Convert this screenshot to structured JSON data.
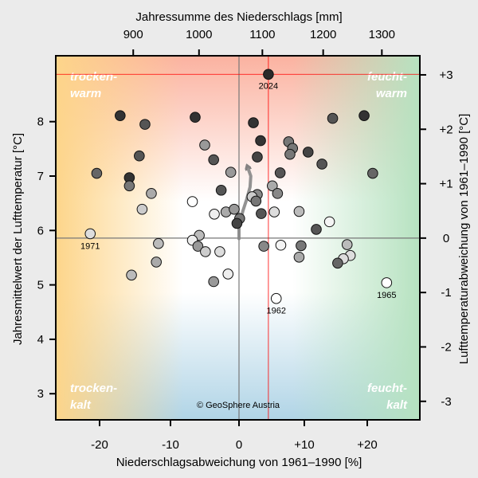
{
  "chart_data": {
    "type": "scatter",
    "title": "",
    "xlabel": "Niederschlagsabweichung von 1961–1990 [%]",
    "ylabel": "Jahresmittelwert der Lufttemperatur [°C]",
    "x2label": "Jahressumme des Niederschlags [mm]",
    "y2label": "Lufttemperaturabweichung von 1961–1990 [°C]",
    "xlim": [
      -26,
      28
    ],
    "ylim": [
      2.5,
      9.2
    ],
    "x_ticks": [
      {
        "v": -20,
        "label": "-20"
      },
      {
        "v": -10,
        "label": "-10"
      },
      {
        "v": 0,
        "label": "0"
      },
      {
        "v": 10,
        "label": "+10"
      },
      {
        "v": 20,
        "label": "+20"
      }
    ],
    "y_ticks": [
      {
        "v": 3,
        "label": "3"
      },
      {
        "v": 4,
        "label": "4"
      },
      {
        "v": 5,
        "label": "5"
      },
      {
        "v": 6,
        "label": "6"
      },
      {
        "v": 7,
        "label": "7"
      },
      {
        "v": 8,
        "label": "8"
      }
    ],
    "x2_ticks": [
      {
        "v": 900,
        "label": "900"
      },
      {
        "v": 1000,
        "label": "1000"
      },
      {
        "v": 1100,
        "label": "1100"
      },
      {
        "v": 1200,
        "label": "1200"
      },
      {
        "v": 1300,
        "label": "1300"
      }
    ],
    "y2_ticks": [
      {
        "v": 3,
        "label": "+3"
      },
      {
        "v": 2,
        "label": "+2"
      },
      {
        "v": 1,
        "label": "+1"
      },
      {
        "v": 0,
        "label": "0"
      },
      {
        "v": -1,
        "label": "-1"
      },
      {
        "v": -2,
        "label": "-2"
      },
      {
        "v": -3,
        "label": "-3"
      }
    ],
    "baseline_temp": 5.86,
    "baseline_precip_mm": 1062,
    "quadrants": {
      "top_left": [
        "trocken-",
        "warm"
      ],
      "top_right": [
        "feucht-",
        "warm"
      ],
      "bottom_left": [
        "trocken-",
        "kalt"
      ],
      "bottom_right": [
        "feucht-",
        "kalt"
      ]
    },
    "highlight": {
      "year": "2024",
      "x": 4.5,
      "y": 8.87,
      "color": "#ff0000"
    },
    "labeled_points": [
      {
        "year": "1971",
        "x": -23.3,
        "y": 5.94
      },
      {
        "year": "1962",
        "x": 5.7,
        "y": 4.75
      },
      {
        "year": "1965",
        "x": 23.2,
        "y": 5.04
      }
    ],
    "points": [
      {
        "x": 4.5,
        "y": 8.87,
        "fill": "#2a2a2a"
      },
      {
        "x": -17.1,
        "y": 8.11,
        "fill": "#333333"
      },
      {
        "x": -13.6,
        "y": 7.95,
        "fill": "#555555"
      },
      {
        "x": -6.4,
        "y": 8.08,
        "fill": "#333333"
      },
      {
        "x": 2.2,
        "y": 7.98,
        "fill": "#333333"
      },
      {
        "x": 14.5,
        "y": 8.06,
        "fill": "#555555"
      },
      {
        "x": 19.5,
        "y": 8.11,
        "fill": "#333333"
      },
      {
        "x": 3.3,
        "y": 7.65,
        "fill": "#333333"
      },
      {
        "x": -5.0,
        "y": 7.57,
        "fill": "#999999"
      },
      {
        "x": 7.6,
        "y": 7.63,
        "fill": "#777777"
      },
      {
        "x": 8.2,
        "y": 7.51,
        "fill": "#777777"
      },
      {
        "x": 7.8,
        "y": 7.4,
        "fill": "#777777"
      },
      {
        "x": 10.6,
        "y": 7.44,
        "fill": "#444444"
      },
      {
        "x": -14.4,
        "y": 7.37,
        "fill": "#555555"
      },
      {
        "x": 2.8,
        "y": 7.35,
        "fill": "#444444"
      },
      {
        "x": -3.7,
        "y": 7.3,
        "fill": "#555555"
      },
      {
        "x": 12.8,
        "y": 7.22,
        "fill": "#555555"
      },
      {
        "x": -21.0,
        "y": 7.05,
        "fill": "#666666"
      },
      {
        "x": -1.2,
        "y": 7.07,
        "fill": "#999999"
      },
      {
        "x": 6.3,
        "y": 7.06,
        "fill": "#555555"
      },
      {
        "x": 20.9,
        "y": 7.05,
        "fill": "#666666"
      },
      {
        "x": -15.8,
        "y": 6.97,
        "fill": "#333333"
      },
      {
        "x": -15.8,
        "y": 6.82,
        "fill": "#777777"
      },
      {
        "x": 5.1,
        "y": 6.82,
        "fill": "#aaaaaa"
      },
      {
        "x": -12.7,
        "y": 6.68,
        "fill": "#aaaaaa"
      },
      {
        "x": -2.6,
        "y": 6.74,
        "fill": "#555555"
      },
      {
        "x": 2.8,
        "y": 6.66,
        "fill": "#888888"
      },
      {
        "x": 2.0,
        "y": 6.62,
        "fill": "#cccccc"
      },
      {
        "x": 2.6,
        "y": 6.54,
        "fill": "#777777"
      },
      {
        "x": 5.9,
        "y": 6.68,
        "fill": "#888888"
      },
      {
        "x": -6.8,
        "y": 6.53,
        "fill": "#ffffff"
      },
      {
        "x": -14.0,
        "y": 6.39,
        "fill": "#cccccc"
      },
      {
        "x": -3.6,
        "y": 6.3,
        "fill": "#eeeeee"
      },
      {
        "x": -1.9,
        "y": 6.34,
        "fill": "#aaaaaa"
      },
      {
        "x": -0.7,
        "y": 6.39,
        "fill": "#999999"
      },
      {
        "x": 3.4,
        "y": 6.31,
        "fill": "#555555"
      },
      {
        "x": 5.4,
        "y": 6.34,
        "fill": "#dddddd"
      },
      {
        "x": 9.2,
        "y": 6.35,
        "fill": "#bbbbbb"
      },
      {
        "x": 0.1,
        "y": 6.22,
        "fill": "#777777"
      },
      {
        "x": -0.3,
        "y": 6.13,
        "fill": "#444444"
      },
      {
        "x": 14.0,
        "y": 6.16,
        "fill": "#f4f4f4"
      },
      {
        "x": 11.9,
        "y": 6.02,
        "fill": "#555555"
      },
      {
        "x": -23.3,
        "y": 5.94,
        "fill": "#dddddd"
      },
      {
        "x": -5.8,
        "y": 5.91,
        "fill": "#bbbbbb"
      },
      {
        "x": -6.8,
        "y": 5.82,
        "fill": "#eeeeee"
      },
      {
        "x": -11.7,
        "y": 5.76,
        "fill": "#bbbbbb"
      },
      {
        "x": -6.0,
        "y": 5.71,
        "fill": "#999999"
      },
      {
        "x": -4.9,
        "y": 5.61,
        "fill": "#cccccc"
      },
      {
        "x": -2.8,
        "y": 5.61,
        "fill": "#dddddd"
      },
      {
        "x": 3.8,
        "y": 5.71,
        "fill": "#888888"
      },
      {
        "x": 6.4,
        "y": 5.73,
        "fill": "#f4f4f4"
      },
      {
        "x": 9.5,
        "y": 5.72,
        "fill": "#777777"
      },
      {
        "x": 9.2,
        "y": 5.51,
        "fill": "#aaaaaa"
      },
      {
        "x": 16.8,
        "y": 5.74,
        "fill": "#bbbbbb"
      },
      {
        "x": 17.3,
        "y": 5.54,
        "fill": "#dddddd"
      },
      {
        "x": 16.2,
        "y": 5.48,
        "fill": "#dddddd"
      },
      {
        "x": 15.3,
        "y": 5.4,
        "fill": "#666666"
      },
      {
        "x": -12.0,
        "y": 5.42,
        "fill": "#aaaaaa"
      },
      {
        "x": -15.5,
        "y": 5.18,
        "fill": "#bbbbbb"
      },
      {
        "x": -1.6,
        "y": 5.2,
        "fill": "#eeeeee"
      },
      {
        "x": -3.7,
        "y": 5.06,
        "fill": "#999999"
      },
      {
        "x": 5.7,
        "y": 4.75,
        "fill": "#ffffff"
      },
      {
        "x": 23.2,
        "y": 5.04,
        "fill": "#ffffff"
      }
    ],
    "trend_path": [
      {
        "x": 0.0,
        "y": 5.85
      },
      {
        "x": 0.0,
        "y": 6.07
      },
      {
        "x": 0.6,
        "y": 6.36
      },
      {
        "x": 1.2,
        "y": 6.58
      },
      {
        "x": 1.7,
        "y": 6.8
      },
      {
        "x": 1.8,
        "y": 7.0
      },
      {
        "x": 1.3,
        "y": 7.17
      }
    ],
    "colors": {
      "orange": "#fdd58a",
      "red": "#fbb2a0",
      "green": "#b6e2c0",
      "blue": "#b0d4e6",
      "highlight": "#ff0000"
    },
    "copyright": "© GeoSphere Austria"
  }
}
